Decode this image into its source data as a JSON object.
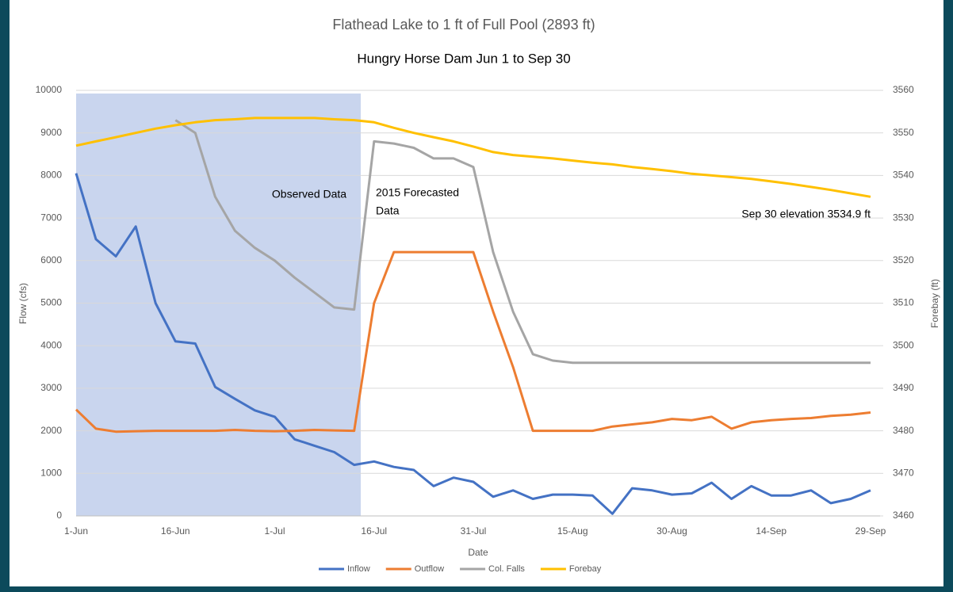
{
  "chart_data": {
    "type": "line",
    "title": "Flathead Lake to 1 ft of Full Pool (2893 ft)",
    "subtitle": "Hungry Horse Dam Jun 1 to Sep 30",
    "x_label": "Date",
    "y_label": "Flow (cfs)",
    "y2_label": "Forebay (ft)",
    "annotations": [
      "Observed Data",
      "2015 Forecasted",
      "Data",
      "Sep 30 elevation 3534.9 ft"
    ],
    "categories": [
      "1-Jun",
      null,
      null,
      null,
      null,
      "16-Jun",
      null,
      null,
      null,
      null,
      "1-Jul",
      null,
      null,
      null,
      null,
      "16-Jul",
      null,
      null,
      null,
      null,
      "31-Jul",
      null,
      null,
      null,
      null,
      "15-Aug",
      null,
      null,
      null,
      null,
      "30-Aug",
      null,
      null,
      null,
      null,
      "14-Sep",
      null,
      null,
      null,
      null,
      "29-Sep"
    ],
    "series": [
      {
        "name": "Inflow",
        "color": "#4472c4",
        "values": [
          8050,
          6500,
          6100,
          6800,
          5000,
          4100,
          4050,
          3030,
          2750,
          2480,
          2330,
          1800,
          1650,
          1500,
          1200,
          1280,
          1150,
          1080,
          700,
          900,
          800,
          450,
          600,
          400,
          500,
          500,
          480,
          50,
          650,
          600,
          500,
          530,
          780,
          400,
          700,
          480,
          480,
          600,
          300,
          400,
          600
        ]
      },
      {
        "name": "Outflow",
        "color": "#ed7d31",
        "values": [
          2500,
          2050,
          1980,
          1990,
          2000,
          2000,
          2000,
          2000,
          2020,
          2000,
          1990,
          2000,
          2020,
          2010,
          2000,
          5000,
          6200,
          6200,
          6200,
          6200,
          6200,
          4800,
          3500,
          2000,
          2000,
          2000,
          2000,
          2100,
          2150,
          2200,
          2280,
          2250,
          2330,
          2050,
          2200,
          2250,
          2280,
          2300,
          2350,
          2380,
          2430
        ]
      },
      {
        "name": "Col. Falls",
        "color": "#a5a5a5",
        "values": [
          null,
          null,
          null,
          null,
          null,
          9300,
          9000,
          7500,
          6700,
          6300,
          6000,
          5600,
          5250,
          4900,
          4850,
          8800,
          8750,
          8650,
          8400,
          8400,
          8200,
          6200,
          4800,
          3800,
          3650,
          3600,
          3600,
          3600,
          3600,
          3600,
          3600,
          3600,
          3600,
          3600,
          3600,
          3600,
          3600,
          3600,
          3600,
          3600,
          3600
        ]
      },
      {
        "name": "Forebay",
        "color": "#ffc000",
        "axis": "y2",
        "values": [
          3547,
          3548,
          3549,
          3550,
          3551,
          3551.8,
          3552.5,
          3553,
          3553.2,
          3553.5,
          3553.5,
          3553.5,
          3553.5,
          3553.2,
          3553,
          3552.5,
          3551.2,
          3550,
          3549,
          3548,
          3546.8,
          3545.5,
          3544.8,
          3544.4,
          3544,
          3543.5,
          3543,
          3542.6,
          3542,
          3541.5,
          3541,
          3540.4,
          3540,
          3539.6,
          3539.2,
          3538.6,
          3538,
          3537.3,
          3536.6,
          3535.8,
          3535
        ]
      }
    ],
    "ylim": [
      0,
      10000
    ],
    "yticks": [
      0,
      1000,
      2000,
      3000,
      4000,
      5000,
      6000,
      7000,
      8000,
      9000,
      10000
    ],
    "y2lim": [
      3460,
      3560
    ],
    "y2ticks": [
      3460,
      3470,
      3480,
      3490,
      3500,
      3510,
      3520,
      3530,
      3540,
      3550,
      3560
    ],
    "grid": true,
    "legend": "bottom"
  }
}
